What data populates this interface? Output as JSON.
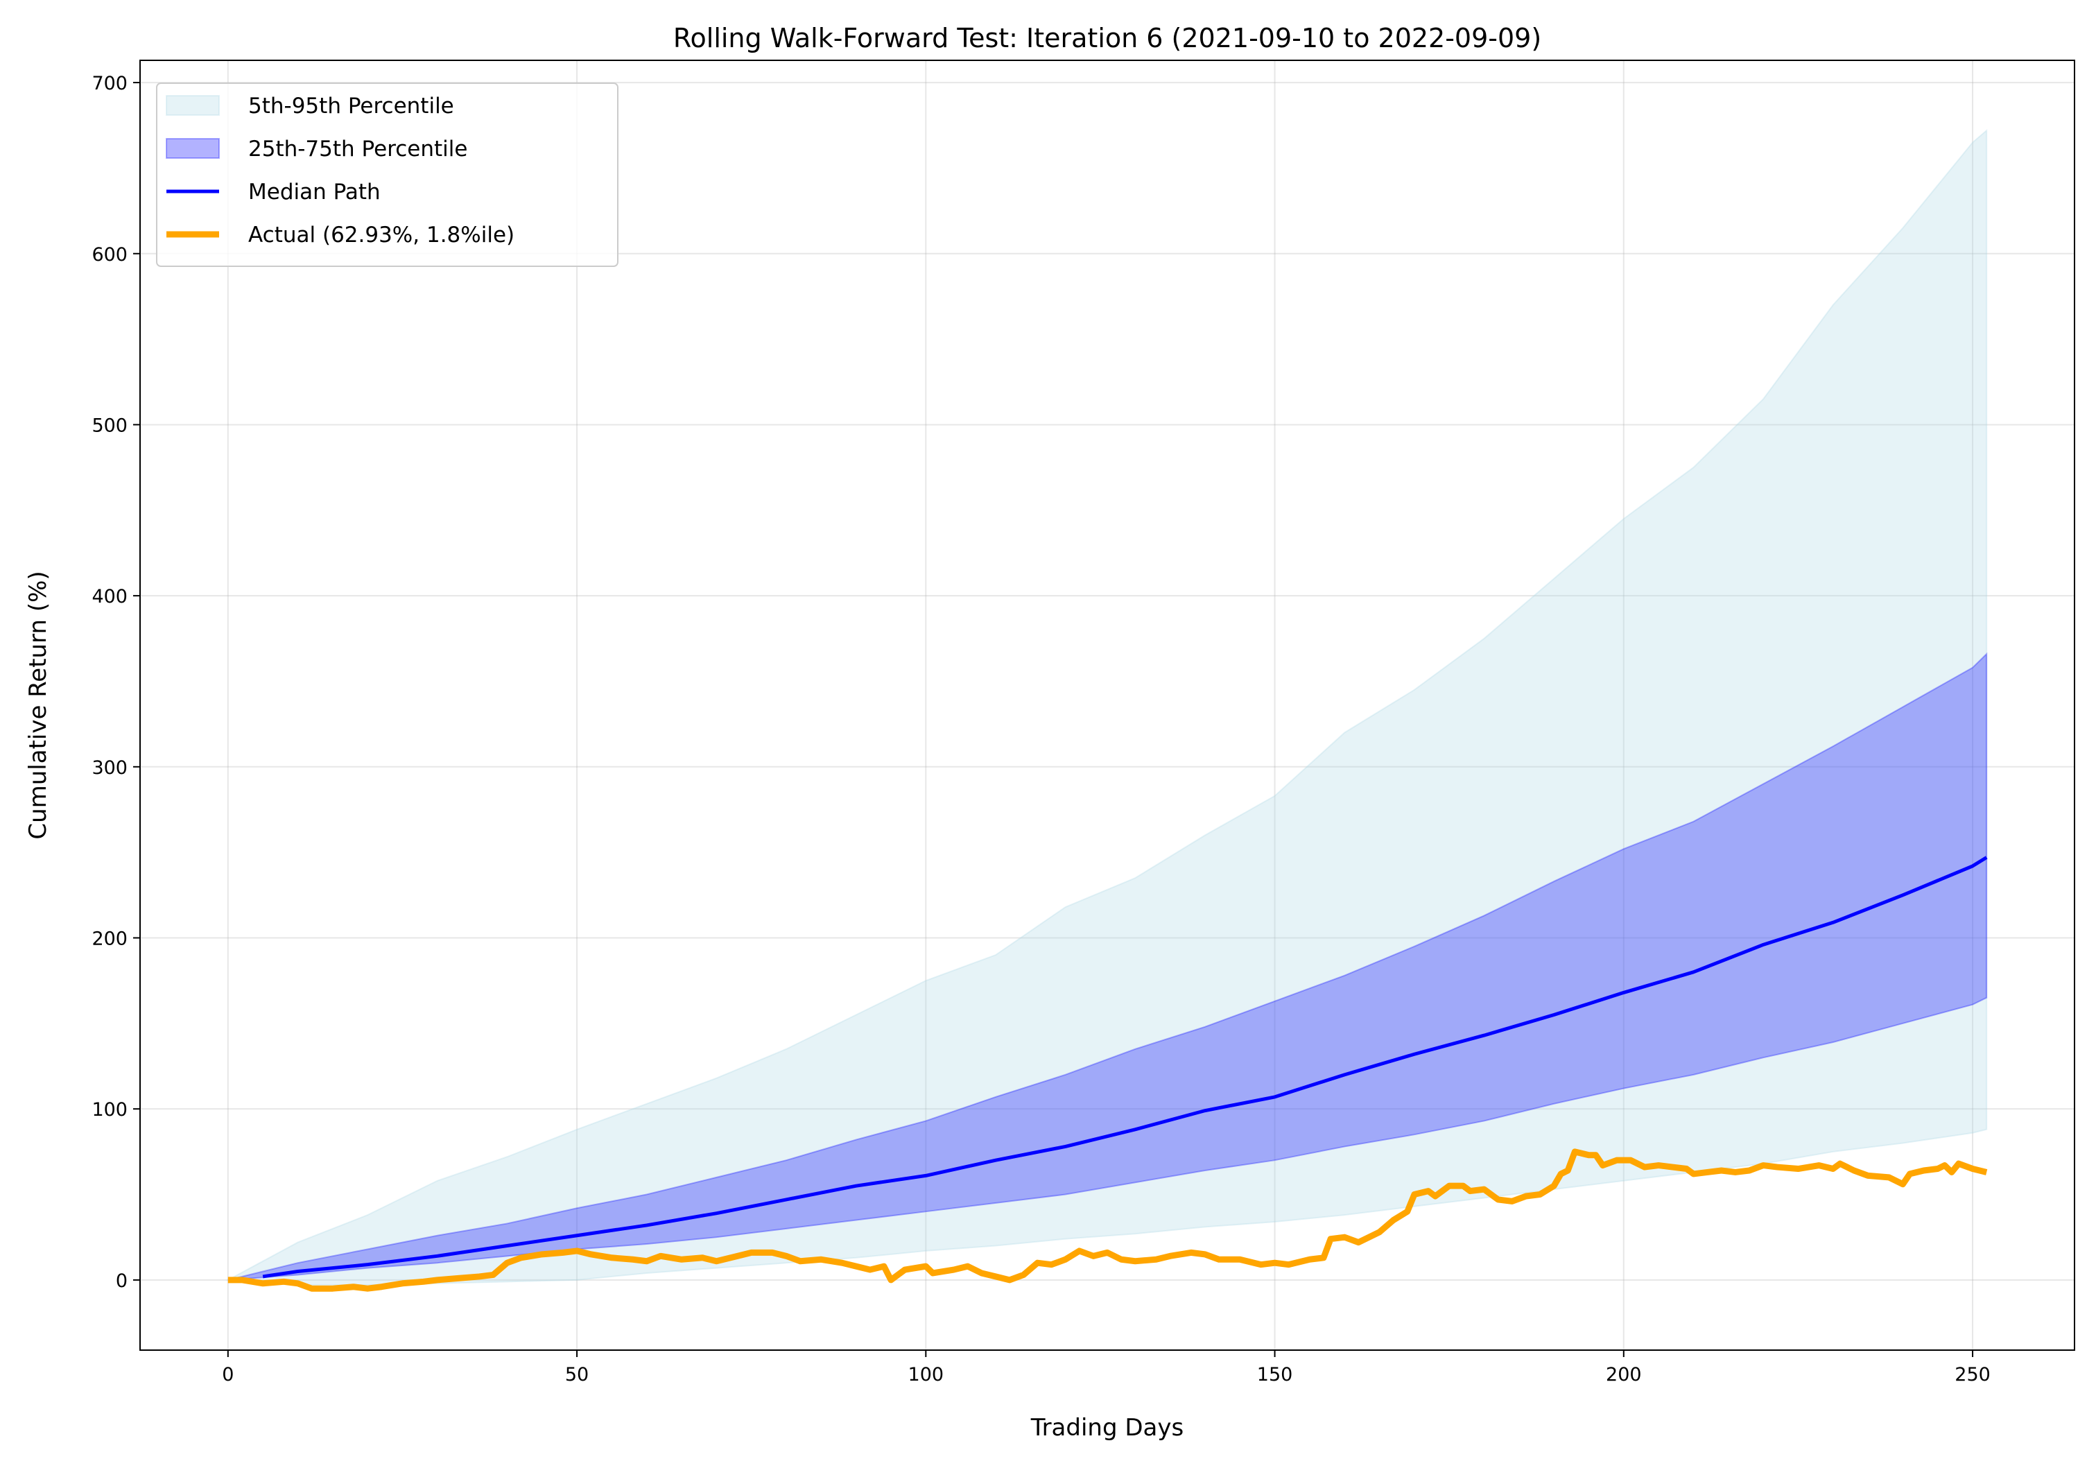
{
  "chart_data": {
    "type": "area",
    "title": "Rolling Walk-Forward Test: Iteration 6 (2021-09-10 to 2022-09-09)",
    "xlabel": "Trading Days",
    "ylabel": "Cumulative Return (%)",
    "xlim": [
      -12.6,
      264.6
    ],
    "ylim": [
      -41,
      713
    ],
    "xticks": [
      0,
      50,
      100,
      150,
      200,
      250
    ],
    "yticks": [
      0,
      100,
      200,
      300,
      400,
      500,
      600,
      700
    ],
    "grid": true,
    "legend_position": "top-left",
    "legend": [
      {
        "label": "5th-95th Percentile",
        "color": "#add8e6",
        "kind": "band"
      },
      {
        "label": "25th-75th Percentile",
        "color": "#0000ff",
        "kind": "band"
      },
      {
        "label": "Median Path",
        "color": "#0000ff",
        "kind": "line"
      },
      {
        "label": "Actual (62.93%, 1.8%ile)",
        "color": "#ffa500",
        "kind": "line"
      }
    ],
    "band_x": [
      0,
      10,
      20,
      30,
      40,
      50,
      60,
      70,
      80,
      90,
      100,
      110,
      120,
      130,
      140,
      150,
      160,
      170,
      180,
      190,
      200,
      210,
      220,
      230,
      240,
      250,
      252
    ],
    "p5": [
      0,
      -3,
      -3,
      -2,
      -1,
      0,
      4,
      7,
      10,
      13,
      17,
      20,
      24,
      27,
      31,
      34,
      38,
      43,
      48,
      53,
      58,
      63,
      68,
      75,
      80,
      86,
      88
    ],
    "p95": [
      0,
      22,
      38,
      58,
      72,
      88,
      103,
      118,
      135,
      155,
      175,
      190,
      218,
      235,
      260,
      283,
      320,
      345,
      375,
      410,
      445,
      475,
      515,
      570,
      615,
      665,
      672
    ],
    "p25": [
      0,
      3,
      7,
      10,
      14,
      18,
      21,
      25,
      30,
      35,
      40,
      45,
      50,
      57,
      64,
      70,
      78,
      85,
      93,
      103,
      112,
      120,
      130,
      139,
      150,
      161,
      165
    ],
    "p75": [
      0,
      10,
      18,
      26,
      33,
      42,
      50,
      60,
      70,
      82,
      93,
      107,
      120,
      135,
      148,
      163,
      178,
      195,
      213,
      233,
      252,
      268,
      290,
      312,
      335,
      358,
      366
    ],
    "median": {
      "x": [
        5,
        10,
        20,
        30,
        40,
        50,
        60,
        70,
        80,
        90,
        100,
        110,
        120,
        130,
        140,
        150,
        160,
        170,
        180,
        190,
        200,
        210,
        220,
        230,
        240,
        250,
        252
      ],
      "y": [
        2,
        5,
        9,
        14,
        20,
        26,
        32,
        39,
        47,
        55,
        61,
        70,
        78,
        88,
        99,
        107,
        120,
        132,
        143,
        155,
        168,
        180,
        196,
        209,
        225,
        242,
        247
      ]
    },
    "actual": {
      "x": [
        0,
        2,
        5,
        8,
        10,
        12,
        15,
        18,
        20,
        22,
        25,
        28,
        30,
        33,
        36,
        38,
        40,
        42,
        45,
        48,
        50,
        52,
        55,
        58,
        60,
        62,
        65,
        68,
        70,
        73,
        75,
        78,
        80,
        82,
        85,
        88,
        90,
        92,
        94,
        95,
        97,
        100,
        101,
        104,
        106,
        108,
        110,
        112,
        114,
        116,
        118,
        120,
        122,
        124,
        126,
        128,
        130,
        133,
        135,
        138,
        140,
        142,
        145,
        148,
        150,
        152,
        155,
        157,
        158,
        160,
        162,
        165,
        167,
        169,
        170,
        172,
        173,
        175,
        177,
        178,
        180,
        182,
        184,
        186,
        188,
        190,
        191,
        192,
        193,
        195,
        196,
        197,
        199,
        201,
        203,
        205,
        207,
        209,
        210,
        212,
        214,
        216,
        218,
        220,
        222,
        225,
        228,
        230,
        231,
        233,
        235,
        238,
        240,
        241,
        243,
        245,
        246,
        247,
        248,
        250,
        252
      ],
      "y": [
        0,
        0,
        -2,
        -1,
        -2,
        -5,
        -5,
        -4,
        -5,
        -4,
        -2,
        -1,
        0,
        1,
        2,
        3,
        10,
        13,
        15,
        16,
        17,
        15,
        13,
        12,
        11,
        14,
        12,
        13,
        11,
        14,
        16,
        16,
        14,
        11,
        12,
        10,
        8,
        6,
        8,
        0,
        6,
        8,
        4,
        6,
        8,
        4,
        2,
        0,
        3,
        10,
        9,
        12,
        17,
        14,
        16,
        12,
        11,
        12,
        14,
        16,
        15,
        12,
        12,
        9,
        10,
        9,
        12,
        13,
        24,
        25,
        22,
        28,
        35,
        40,
        50,
        52,
        49,
        55,
        55,
        52,
        53,
        47,
        46,
        49,
        50,
        55,
        62,
        64,
        75,
        73,
        73,
        67,
        70,
        70,
        66,
        67,
        66,
        65,
        62,
        63,
        64,
        63,
        64,
        67,
        66,
        65,
        67,
        65,
        68,
        64,
        61,
        60,
        56,
        62,
        64,
        65,
        67,
        63,
        68,
        65,
        63
      ]
    }
  }
}
